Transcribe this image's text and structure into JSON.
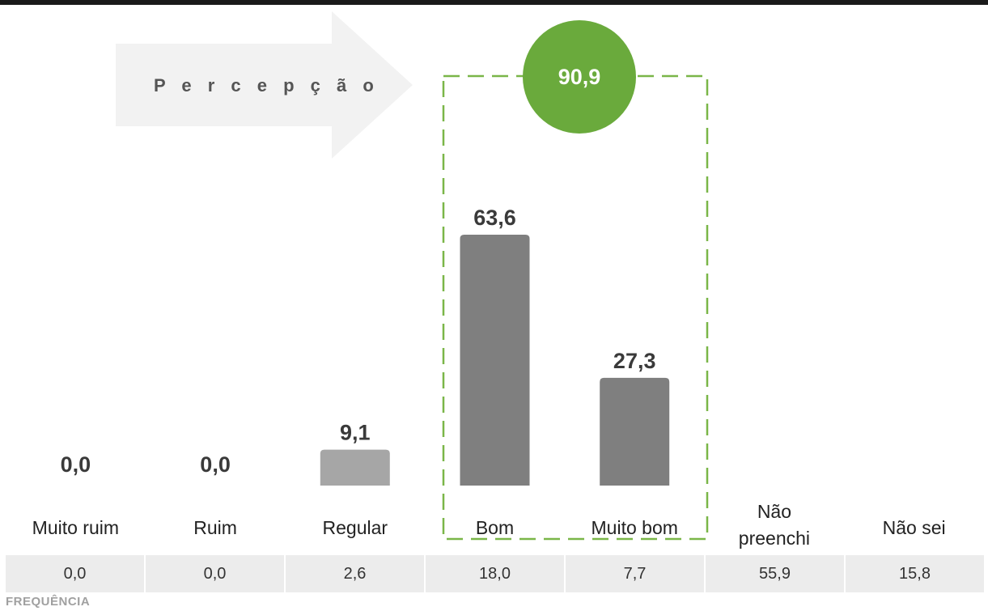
{
  "colors": {
    "arrow_fill": "#f2f2f2",
    "bar_regular": "#a6a6a6",
    "bar_positive": "#7f7f7f",
    "highlight_circle": "#6aaa3c",
    "highlight_dash": "#7ab648",
    "table_bg": "#ececec"
  },
  "perception": {
    "label": "P e r c e p ç ã o"
  },
  "positive_total": {
    "value": "90,9",
    "members": [
      "Bom",
      "Muito bom"
    ]
  },
  "chart_data": {
    "type": "bar",
    "categories": [
      "Muito ruim",
      "Ruim",
      "Regular",
      "Bom",
      "Muito bom",
      "Não preenchi",
      "Não sei"
    ],
    "category_labels": [
      "Muito ruim",
      "Ruim",
      "Regular",
      "Bom",
      "Muito bom",
      "Não\npreenchi",
      "Não sei"
    ],
    "values": [
      0.0,
      0.0,
      9.1,
      63.6,
      27.3,
      null,
      null
    ],
    "value_labels": [
      "0,0",
      "0,0",
      "9,1",
      "63,6",
      "27,3",
      "",
      ""
    ],
    "ylim": [
      0,
      63.6
    ],
    "grid": false,
    "title": "",
    "xlabel": "",
    "ylabel": ""
  },
  "frequency": {
    "title": "FREQUÊNCIA",
    "values": [
      "0,0",
      "0,0",
      "2,6",
      "18,0",
      "7,7",
      "55,9",
      "15,8"
    ]
  }
}
